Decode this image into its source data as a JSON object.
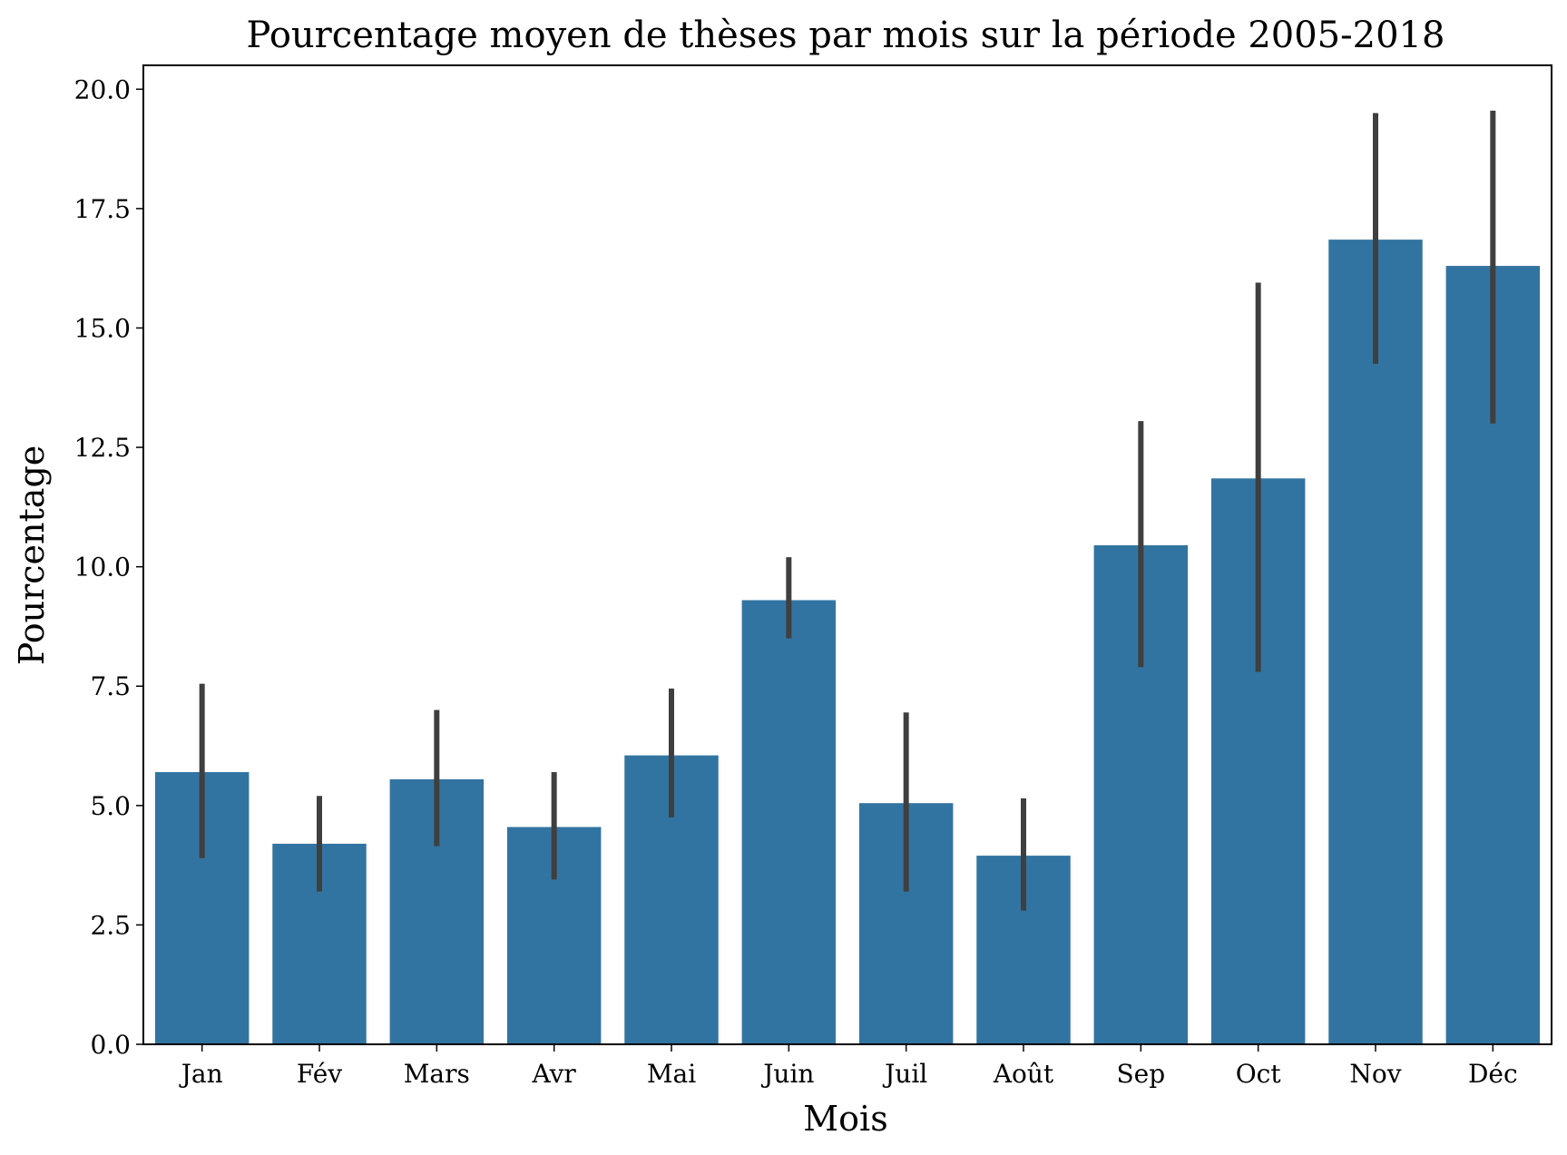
{
  "chart_data": {
    "type": "bar",
    "title": "Pourcentage moyen de thèses par mois sur la période 2005-2018",
    "xlabel": "Mois",
    "ylabel": "Pourcentage",
    "categories": [
      "Jan",
      "Fév",
      "Mars",
      "Avr",
      "Mai",
      "Juin",
      "Juil",
      "Août",
      "Sep",
      "Oct",
      "Nov",
      "Déc"
    ],
    "values": [
      5.7,
      4.2,
      5.55,
      4.55,
      6.05,
      9.3,
      5.05,
      3.95,
      10.45,
      11.85,
      16.85,
      16.3
    ],
    "error_low": [
      3.9,
      3.2,
      4.15,
      3.45,
      4.75,
      8.5,
      3.2,
      2.8,
      7.9,
      7.8,
      14.25,
      13.0
    ],
    "error_high": [
      7.55,
      5.2,
      7.0,
      5.7,
      7.45,
      10.2,
      6.95,
      5.15,
      13.05,
      15.95,
      19.5,
      19.55
    ],
    "ylim": [
      0,
      20.5
    ],
    "yticks": [
      0.0,
      2.5,
      5.0,
      7.5,
      10.0,
      12.5,
      15.0,
      17.5,
      20.0
    ],
    "ytick_labels": [
      "0.0",
      "2.5",
      "5.0",
      "7.5",
      "10.0",
      "12.5",
      "15.0",
      "17.5",
      "20.0"
    ],
    "grid": false,
    "colors": {
      "bar": "#3274a1",
      "error_bar": "#3f3f3f",
      "axis": "#000000"
    }
  }
}
